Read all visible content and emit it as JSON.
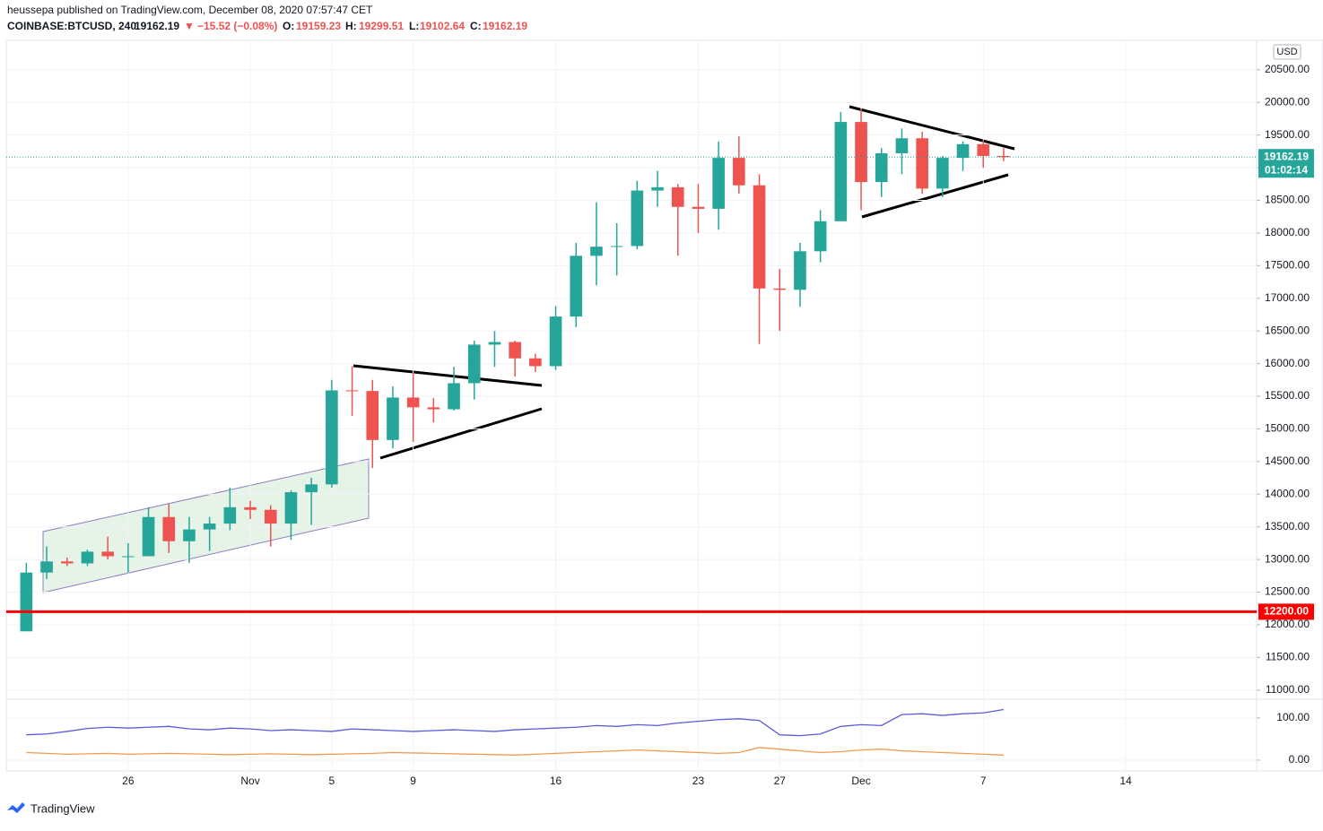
{
  "header": {
    "publisher": "heussepa published on TradingView.com, December 08, 2020 07:57:47 CET"
  },
  "chart_data": [
    {
      "type": "candlestick",
      "legend": {
        "symbol": "COINBASE:BTCUSD, 240",
        "last": 19162.19,
        "arrow": "▼",
        "change": "−15.52 (−0.08%)",
        "open_label": "O:",
        "open": 19159.23,
        "high_label": "H:",
        "high": 19299.51,
        "low_label": "L:",
        "low": 19102.64,
        "close_label": "C:",
        "close": 19162.19
      },
      "axis_unit": "USD",
      "categories": [
        null,
        null,
        null,
        null,
        null,
        "26",
        null,
        null,
        null,
        null,
        null,
        "Nov",
        null,
        null,
        null,
        "5",
        null,
        null,
        null,
        "9",
        null,
        null,
        null,
        null,
        null,
        null,
        "16",
        null,
        null,
        null,
        null,
        null,
        null,
        "23",
        null,
        null,
        null,
        "27",
        null,
        null,
        null,
        "Dec",
        null,
        null,
        null,
        null,
        null,
        "7",
        null,
        null,
        null,
        null,
        null,
        null,
        "14"
      ],
      "open": [
        11900,
        12800,
        12970,
        12940,
        13120,
        13050,
        13050,
        13650,
        13280,
        13460,
        13550,
        13800,
        13760,
        13550,
        14030,
        14150,
        15590,
        15580,
        14830,
        15480,
        15330,
        15300,
        15700,
        16290,
        16330,
        16080,
        15960,
        16720,
        17650,
        17790,
        17800,
        18650,
        18700,
        18400,
        18370,
        19150,
        18730,
        17150,
        17130,
        17720,
        18180,
        19700,
        18780,
        19220,
        19450,
        18680,
        19150,
        19360,
        19180,
        null,
        null,
        null,
        null,
        null,
        null
      ],
      "high": [
        12950,
        13200,
        13030,
        13150,
        13350,
        13250,
        13800,
        13850,
        13650,
        13650,
        14100,
        13900,
        13830,
        14060,
        14250,
        15750,
        15960,
        15750,
        15650,
        15850,
        15470,
        15950,
        16350,
        16500,
        16350,
        16150,
        16880,
        17850,
        18470,
        18150,
        18800,
        18950,
        18750,
        18750,
        19400,
        19480,
        18900,
        17450,
        17850,
        18350,
        19850,
        19900,
        19300,
        19600,
        19550,
        19180,
        19400,
        19420,
        19300,
        null,
        null,
        null,
        null,
        null,
        null
      ],
      "low": [
        11900,
        12700,
        12900,
        12900,
        13000,
        12800,
        13050,
        13100,
        12950,
        13130,
        13450,
        13620,
        13200,
        13300,
        13530,
        14100,
        15200,
        14400,
        14700,
        14800,
        15100,
        15280,
        15450,
        15950,
        15800,
        15870,
        15900,
        16560,
        17200,
        17350,
        17750,
        18400,
        17650,
        18000,
        18050,
        18600,
        16300,
        16500,
        16870,
        17550,
        18180,
        18350,
        18550,
        18900,
        18600,
        18550,
        18950,
        19000,
        19100,
        null,
        null,
        null,
        null,
        null,
        null
      ],
      "close": [
        12800,
        12970,
        12940,
        13120,
        13050,
        13050,
        13650,
        13280,
        13460,
        13550,
        13800,
        13760,
        13550,
        14030,
        14150,
        15590,
        15580,
        14830,
        15480,
        15330,
        15300,
        15700,
        16290,
        16330,
        16080,
        15960,
        16720,
        17650,
        17790,
        17800,
        18650,
        18700,
        18400,
        18370,
        19150,
        18730,
        17150,
        17130,
        17720,
        18180,
        19700,
        18780,
        19220,
        19450,
        18680,
        19150,
        19360,
        19180,
        19162.19,
        null,
        null,
        null,
        null,
        null,
        null
      ],
      "up_color": "#26a69a",
      "down_color": "#ef5350",
      "ylim": [
        10860,
        20950
      ],
      "yticks": [
        {
          "value": 11000,
          "label": "11000.00"
        },
        {
          "value": 11500,
          "label": "11500.00"
        },
        {
          "value": 12000,
          "label": "12000.00"
        },
        {
          "value": 12500,
          "label": "12500.00"
        },
        {
          "value": 13000,
          "label": "13000.00"
        },
        {
          "value": 13500,
          "label": "13500.00"
        },
        {
          "value": 14000,
          "label": "14000.00"
        },
        {
          "value": 14500,
          "label": "14500.00"
        },
        {
          "value": 15000,
          "label": "15000.00"
        },
        {
          "value": 15500,
          "label": "15500.00"
        },
        {
          "value": 16000,
          "label": "16000.00"
        },
        {
          "value": 16500,
          "label": "16500.00"
        },
        {
          "value": 17000,
          "label": "17000.00"
        },
        {
          "value": 17500,
          "label": "17500.00"
        },
        {
          "value": 18000,
          "label": "18000.00"
        },
        {
          "value": 18500,
          "label": "18500.00"
        },
        {
          "value": 19000,
          "label": "19000.00"
        },
        {
          "value": 19500,
          "label": "19500.00"
        },
        {
          "value": 20000,
          "label": "20000.00"
        },
        {
          "value": 20500,
          "label": "20500.00"
        }
      ],
      "price_label": 19162.19,
      "price_color": "#26a69a",
      "countdown": "01:02:14",
      "hline": {
        "value": 12200,
        "label": "12200.00",
        "color": "#ff0000"
      }
    },
    {
      "type": "line",
      "ylim": [
        -15,
        138
      ],
      "yticks": [
        {
          "value": 0,
          "label": "0.00"
        },
        {
          "value": 100,
          "label": "100.00"
        }
      ],
      "series": [
        {
          "color": "#5b5bdb",
          "values": [
            60,
            62,
            68,
            75,
            78,
            76,
            78,
            80,
            74,
            72,
            76,
            74,
            70,
            72,
            70,
            68,
            74,
            72,
            70,
            68,
            70,
            72,
            70,
            68,
            72,
            74,
            76,
            78,
            82,
            80,
            84,
            82,
            88,
            92,
            96,
            98,
            94,
            60,
            58,
            62,
            80,
            84,
            82,
            108,
            110,
            106,
            110,
            112,
            120
          ]
        },
        {
          "color": "#f39a4f",
          "values": [
            18,
            16,
            14,
            15,
            16,
            14,
            15,
            16,
            15,
            14,
            13,
            14,
            15,
            14,
            13,
            14,
            15,
            16,
            18,
            17,
            16,
            15,
            14,
            13,
            12,
            14,
            16,
            18,
            20,
            22,
            24,
            22,
            20,
            18,
            16,
            18,
            30,
            26,
            22,
            18,
            20,
            24,
            26,
            22,
            20,
            18,
            16,
            14,
            12
          ]
        }
      ]
    }
  ],
  "footer": {
    "brand": "TradingView"
  }
}
